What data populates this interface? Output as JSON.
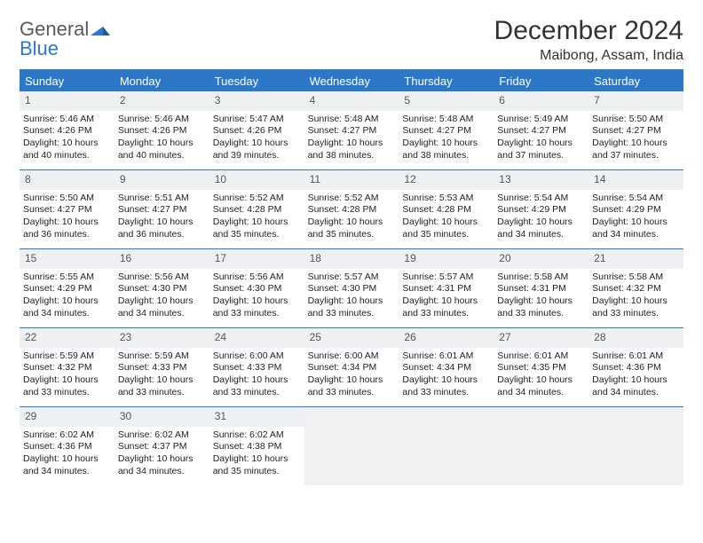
{
  "logo": {
    "text1": "General",
    "text2": "Blue",
    "text_color": "#5a5a5a",
    "blue_color": "#2d78c6"
  },
  "header": {
    "title": "December 2024",
    "location": "Maibong, Assam, India"
  },
  "style": {
    "header_bg": "#2d78c6",
    "header_text": "#ffffff",
    "daynum_bg": "#eef0f2",
    "border_color": "#2d78c6",
    "empty_bg": "#f1f1f1",
    "page_bg": "#ffffff",
    "body_text": "#222222"
  },
  "days_of_week": [
    "Sunday",
    "Monday",
    "Tuesday",
    "Wednesday",
    "Thursday",
    "Friday",
    "Saturday"
  ],
  "weeks": [
    [
      {
        "day": "1",
        "sunrise": "Sunrise: 5:46 AM",
        "sunset": "Sunset: 4:26 PM",
        "daylight": "Daylight: 10 hours and 40 minutes."
      },
      {
        "day": "2",
        "sunrise": "Sunrise: 5:46 AM",
        "sunset": "Sunset: 4:26 PM",
        "daylight": "Daylight: 10 hours and 40 minutes."
      },
      {
        "day": "3",
        "sunrise": "Sunrise: 5:47 AM",
        "sunset": "Sunset: 4:26 PM",
        "daylight": "Daylight: 10 hours and 39 minutes."
      },
      {
        "day": "4",
        "sunrise": "Sunrise: 5:48 AM",
        "sunset": "Sunset: 4:27 PM",
        "daylight": "Daylight: 10 hours and 38 minutes."
      },
      {
        "day": "5",
        "sunrise": "Sunrise: 5:48 AM",
        "sunset": "Sunset: 4:27 PM",
        "daylight": "Daylight: 10 hours and 38 minutes."
      },
      {
        "day": "6",
        "sunrise": "Sunrise: 5:49 AM",
        "sunset": "Sunset: 4:27 PM",
        "daylight": "Daylight: 10 hours and 37 minutes."
      },
      {
        "day": "7",
        "sunrise": "Sunrise: 5:50 AM",
        "sunset": "Sunset: 4:27 PM",
        "daylight": "Daylight: 10 hours and 37 minutes."
      }
    ],
    [
      {
        "day": "8",
        "sunrise": "Sunrise: 5:50 AM",
        "sunset": "Sunset: 4:27 PM",
        "daylight": "Daylight: 10 hours and 36 minutes."
      },
      {
        "day": "9",
        "sunrise": "Sunrise: 5:51 AM",
        "sunset": "Sunset: 4:27 PM",
        "daylight": "Daylight: 10 hours and 36 minutes."
      },
      {
        "day": "10",
        "sunrise": "Sunrise: 5:52 AM",
        "sunset": "Sunset: 4:28 PM",
        "daylight": "Daylight: 10 hours and 35 minutes."
      },
      {
        "day": "11",
        "sunrise": "Sunrise: 5:52 AM",
        "sunset": "Sunset: 4:28 PM",
        "daylight": "Daylight: 10 hours and 35 minutes."
      },
      {
        "day": "12",
        "sunrise": "Sunrise: 5:53 AM",
        "sunset": "Sunset: 4:28 PM",
        "daylight": "Daylight: 10 hours and 35 minutes."
      },
      {
        "day": "13",
        "sunrise": "Sunrise: 5:54 AM",
        "sunset": "Sunset: 4:29 PM",
        "daylight": "Daylight: 10 hours and 34 minutes."
      },
      {
        "day": "14",
        "sunrise": "Sunrise: 5:54 AM",
        "sunset": "Sunset: 4:29 PM",
        "daylight": "Daylight: 10 hours and 34 minutes."
      }
    ],
    [
      {
        "day": "15",
        "sunrise": "Sunrise: 5:55 AM",
        "sunset": "Sunset: 4:29 PM",
        "daylight": "Daylight: 10 hours and 34 minutes."
      },
      {
        "day": "16",
        "sunrise": "Sunrise: 5:56 AM",
        "sunset": "Sunset: 4:30 PM",
        "daylight": "Daylight: 10 hours and 34 minutes."
      },
      {
        "day": "17",
        "sunrise": "Sunrise: 5:56 AM",
        "sunset": "Sunset: 4:30 PM",
        "daylight": "Daylight: 10 hours and 33 minutes."
      },
      {
        "day": "18",
        "sunrise": "Sunrise: 5:57 AM",
        "sunset": "Sunset: 4:30 PM",
        "daylight": "Daylight: 10 hours and 33 minutes."
      },
      {
        "day": "19",
        "sunrise": "Sunrise: 5:57 AM",
        "sunset": "Sunset: 4:31 PM",
        "daylight": "Daylight: 10 hours and 33 minutes."
      },
      {
        "day": "20",
        "sunrise": "Sunrise: 5:58 AM",
        "sunset": "Sunset: 4:31 PM",
        "daylight": "Daylight: 10 hours and 33 minutes."
      },
      {
        "day": "21",
        "sunrise": "Sunrise: 5:58 AM",
        "sunset": "Sunset: 4:32 PM",
        "daylight": "Daylight: 10 hours and 33 minutes."
      }
    ],
    [
      {
        "day": "22",
        "sunrise": "Sunrise: 5:59 AM",
        "sunset": "Sunset: 4:32 PM",
        "daylight": "Daylight: 10 hours and 33 minutes."
      },
      {
        "day": "23",
        "sunrise": "Sunrise: 5:59 AM",
        "sunset": "Sunset: 4:33 PM",
        "daylight": "Daylight: 10 hours and 33 minutes."
      },
      {
        "day": "24",
        "sunrise": "Sunrise: 6:00 AM",
        "sunset": "Sunset: 4:33 PM",
        "daylight": "Daylight: 10 hours and 33 minutes."
      },
      {
        "day": "25",
        "sunrise": "Sunrise: 6:00 AM",
        "sunset": "Sunset: 4:34 PM",
        "daylight": "Daylight: 10 hours and 33 minutes."
      },
      {
        "day": "26",
        "sunrise": "Sunrise: 6:01 AM",
        "sunset": "Sunset: 4:34 PM",
        "daylight": "Daylight: 10 hours and 33 minutes."
      },
      {
        "day": "27",
        "sunrise": "Sunrise: 6:01 AM",
        "sunset": "Sunset: 4:35 PM",
        "daylight": "Daylight: 10 hours and 34 minutes."
      },
      {
        "day": "28",
        "sunrise": "Sunrise: 6:01 AM",
        "sunset": "Sunset: 4:36 PM",
        "daylight": "Daylight: 10 hours and 34 minutes."
      }
    ],
    [
      {
        "day": "29",
        "sunrise": "Sunrise: 6:02 AM",
        "sunset": "Sunset: 4:36 PM",
        "daylight": "Daylight: 10 hours and 34 minutes."
      },
      {
        "day": "30",
        "sunrise": "Sunrise: 6:02 AM",
        "sunset": "Sunset: 4:37 PM",
        "daylight": "Daylight: 10 hours and 34 minutes."
      },
      {
        "day": "31",
        "sunrise": "Sunrise: 6:02 AM",
        "sunset": "Sunset: 4:38 PM",
        "daylight": "Daylight: 10 hours and 35 minutes."
      },
      {
        "empty": true
      },
      {
        "empty": true
      },
      {
        "empty": true
      },
      {
        "empty": true
      }
    ]
  ]
}
